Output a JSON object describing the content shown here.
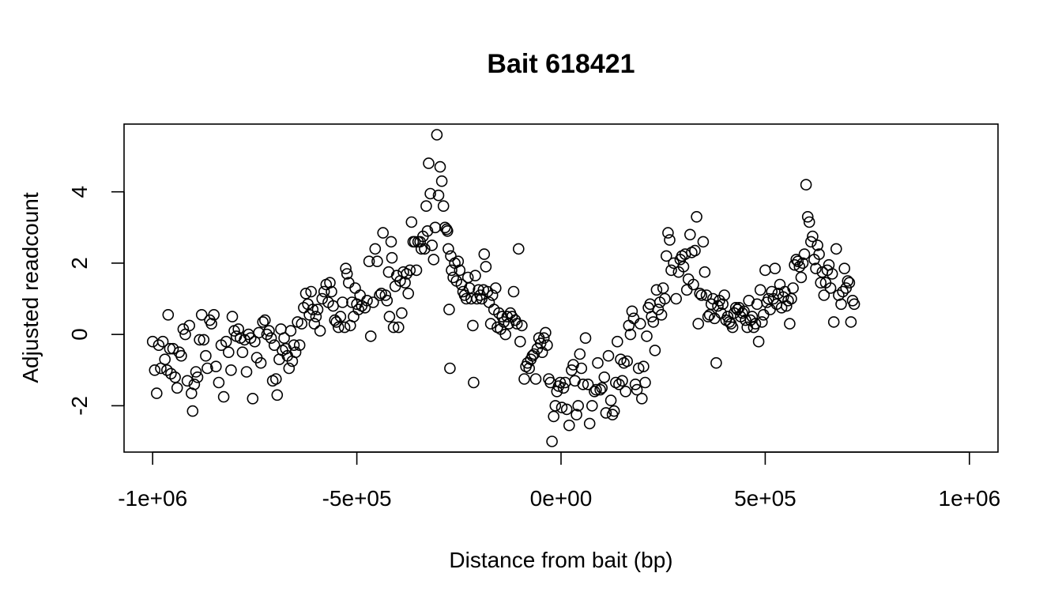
{
  "chart_data": {
    "type": "scatter",
    "title": "Bait 618421",
    "xlabel": "Distance from bait (bp)",
    "ylabel": "Adjusted readcount",
    "xlim": [
      -1070000,
      1070000
    ],
    "ylim": [
      -3.3,
      5.9
    ],
    "x_ticks": [
      -1000000,
      -500000,
      0,
      500000,
      1000000
    ],
    "x_tick_labels": [
      "-1e+06",
      "-5e+05",
      "0e+00",
      "5e+05",
      "1e+06"
    ],
    "y_ticks": [
      -2,
      0,
      2,
      4
    ],
    "y_tick_labels": [
      "-2",
      "0",
      "2",
      "4"
    ],
    "marker": "open-circle",
    "color": "#000000",
    "grid": false,
    "legend": "none",
    "points": [
      [
        -1000000,
        -0.2
      ],
      [
        -995000,
        -1.0
      ],
      [
        -990000,
        -1.65
      ],
      [
        -985000,
        -0.3
      ],
      [
        -980000,
        -0.95
      ],
      [
        -975000,
        -0.2
      ],
      [
        -970000,
        -0.7
      ],
      [
        -965000,
        -1.0
      ],
      [
        -962000,
        0.55
      ],
      [
        -958000,
        -0.4
      ],
      [
        -955000,
        -1.1
      ],
      [
        -950000,
        -0.4
      ],
      [
        -945000,
        -1.2
      ],
      [
        -940000,
        -1.5
      ],
      [
        -935000,
        -0.5
      ],
      [
        -930000,
        -0.6
      ],
      [
        -925000,
        0.15
      ],
      [
        -920000,
        0.0
      ],
      [
        -915000,
        -1.3
      ],
      [
        -910000,
        0.25
      ],
      [
        -905000,
        -1.65
      ],
      [
        -902000,
        -2.15
      ],
      [
        -898000,
        -1.4
      ],
      [
        -894000,
        -1.05
      ],
      [
        -890000,
        -1.2
      ],
      [
        -885000,
        -0.15
      ],
      [
        -880000,
        0.55
      ],
      [
        -875000,
        -0.15
      ],
      [
        -870000,
        -0.6
      ],
      [
        -866000,
        -0.95
      ],
      [
        -860000,
        0.4
      ],
      [
        -856000,
        0.3
      ],
      [
        -850000,
        0.55
      ],
      [
        -845000,
        -0.9
      ],
      [
        -838000,
        -1.35
      ],
      [
        -832000,
        -0.3
      ],
      [
        -826000,
        -1.75
      ],
      [
        -820000,
        -0.2
      ],
      [
        -814000,
        -0.5
      ],
      [
        -808000,
        -1.0
      ],
      [
        -805000,
        0.5
      ],
      [
        -800000,
        0.1
      ],
      [
        -795000,
        -0.05
      ],
      [
        -790000,
        0.15
      ],
      [
        -785000,
        -0.1
      ],
      [
        -780000,
        -0.5
      ],
      [
        -775000,
        -0.15
      ],
      [
        -770000,
        -1.05
      ],
      [
        -765000,
        0.0
      ],
      [
        -760000,
        -0.1
      ],
      [
        -755000,
        -1.8
      ],
      [
        -750000,
        -0.2
      ],
      [
        -745000,
        -0.65
      ],
      [
        -740000,
        0.05
      ],
      [
        -735000,
        -0.8
      ],
      [
        -730000,
        0.35
      ],
      [
        -725000,
        0.4
      ],
      [
        -720000,
        0.0
      ],
      [
        -715000,
        0.1
      ],
      [
        -710000,
        -0.1
      ],
      [
        -706000,
        -1.3
      ],
      [
        -702000,
        -0.3
      ],
      [
        -698000,
        -1.25
      ],
      [
        -695000,
        -1.7
      ],
      [
        -690000,
        -0.7
      ],
      [
        -686000,
        0.15
      ],
      [
        -682000,
        -0.45
      ],
      [
        -678000,
        -0.1
      ],
      [
        -674000,
        -0.4
      ],
      [
        -670000,
        -0.6
      ],
      [
        -666000,
        -0.95
      ],
      [
        -662000,
        0.1
      ],
      [
        -658000,
        -0.75
      ],
      [
        -654000,
        -0.3
      ],
      [
        -650000,
        -0.5
      ],
      [
        -645000,
        0.35
      ],
      [
        -640000,
        -0.3
      ],
      [
        -635000,
        0.3
      ],
      [
        -630000,
        0.75
      ],
      [
        -625000,
        1.15
      ],
      [
        -620000,
        0.85
      ],
      [
        -616000,
        0.55
      ],
      [
        -612000,
        1.2
      ],
      [
        -608000,
        0.7
      ],
      [
        -604000,
        0.3
      ],
      [
        -600000,
        0.5
      ],
      [
        -596000,
        0.7
      ],
      [
        -590000,
        0.1
      ],
      [
        -585000,
        1.0
      ],
      [
        -580000,
        1.2
      ],
      [
        -575000,
        1.4
      ],
      [
        -570000,
        0.9
      ],
      [
        -566000,
        1.45
      ],
      [
        -562000,
        1.2
      ],
      [
        -558000,
        0.8
      ],
      [
        -554000,
        0.4
      ],
      [
        -550000,
        0.35
      ],
      [
        -545000,
        0.2
      ],
      [
        -540000,
        0.5
      ],
      [
        -535000,
        0.9
      ],
      [
        -530000,
        0.2
      ],
      [
        -527000,
        1.85
      ],
      [
        -524000,
        1.7
      ],
      [
        -520000,
        1.45
      ],
      [
        -516000,
        0.25
      ],
      [
        -512000,
        0.9
      ],
      [
        -508000,
        0.5
      ],
      [
        -504000,
        1.3
      ],
      [
        -500000,
        0.85
      ],
      [
        -496000,
        0.7
      ],
      [
        -492000,
        1.1
      ],
      [
        -488000,
        0.8
      ],
      [
        -480000,
        0.75
      ],
      [
        -475000,
        0.95
      ],
      [
        -470000,
        2.05
      ],
      [
        -466000,
        -0.05
      ],
      [
        -460000,
        0.9
      ],
      [
        -455000,
        2.4
      ],
      [
        -450000,
        2.05
      ],
      [
        -444000,
        1.1
      ],
      [
        -440000,
        1.15
      ],
      [
        -436000,
        2.85
      ],
      [
        -430000,
        1.1
      ],
      [
        -426000,
        0.95
      ],
      [
        -422000,
        1.75
      ],
      [
        -420000,
        0.5
      ],
      [
        -416000,
        2.6
      ],
      [
        -414000,
        2.15
      ],
      [
        -410000,
        0.2
      ],
      [
        -406000,
        1.35
      ],
      [
        -402000,
        1.65
      ],
      [
        -398000,
        0.2
      ],
      [
        -394000,
        1.5
      ],
      [
        -390000,
        0.6
      ],
      [
        -386000,
        1.75
      ],
      [
        -382000,
        1.45
      ],
      [
        -378000,
        1.7
      ],
      [
        -374000,
        1.15
      ],
      [
        -370000,
        1.8
      ],
      [
        -366000,
        3.15
      ],
      [
        -362000,
        2.6
      ],
      [
        -358000,
        2.6
      ],
      [
        -354000,
        1.8
      ],
      [
        -350000,
        2.6
      ],
      [
        -345000,
        2.6
      ],
      [
        -342000,
        2.4
      ],
      [
        -338000,
        2.75
      ],
      [
        -334000,
        2.4
      ],
      [
        -330000,
        3.6
      ],
      [
        -327000,
        2.9
      ],
      [
        -324000,
        4.8
      ],
      [
        -320000,
        3.95
      ],
      [
        -316000,
        2.5
      ],
      [
        -312000,
        2.1
      ],
      [
        -308000,
        3.0
      ],
      [
        -304000,
        5.6
      ],
      [
        -300000,
        3.9
      ],
      [
        -296000,
        4.7
      ],
      [
        -292000,
        4.3
      ],
      [
        -288000,
        3.6
      ],
      [
        -284000,
        3.0
      ],
      [
        -280000,
        2.95
      ],
      [
        -278000,
        2.9
      ],
      [
        -276000,
        2.4
      ],
      [
        -274000,
        0.7
      ],
      [
        -272000,
        -0.95
      ],
      [
        -270000,
        2.2
      ],
      [
        -268000,
        1.8
      ],
      [
        -264000,
        1.6
      ],
      [
        -260000,
        2.0
      ],
      [
        -256000,
        1.5
      ],
      [
        -252000,
        2.05
      ],
      [
        -248000,
        1.8
      ],
      [
        -244000,
        1.4
      ],
      [
        -240000,
        1.2
      ],
      [
        -236000,
        1.1
      ],
      [
        -232000,
        1.0
      ],
      [
        -228000,
        1.6
      ],
      [
        -224000,
        1.3
      ],
      [
        -220000,
        1.0
      ],
      [
        -216000,
        0.25
      ],
      [
        -214000,
        -1.35
      ],
      [
        -210000,
        1.65
      ],
      [
        -206000,
        1.0
      ],
      [
        -202000,
        1.25
      ],
      [
        -198000,
        1.1
      ],
      [
        -194000,
        1.0
      ],
      [
        -190000,
        1.25
      ],
      [
        -188000,
        2.25
      ],
      [
        -184000,
        1.9
      ],
      [
        -180000,
        1.2
      ],
      [
        -176000,
        0.9
      ],
      [
        -172000,
        0.3
      ],
      [
        -168000,
        1.1
      ],
      [
        -164000,
        0.7
      ],
      [
        -160000,
        1.3
      ],
      [
        -156000,
        0.2
      ],
      [
        -152000,
        0.6
      ],
      [
        -148000,
        0.15
      ],
      [
        -144000,
        0.5
      ],
      [
        -140000,
        0.35
      ],
      [
        -136000,
        0.0
      ],
      [
        -132000,
        0.5
      ],
      [
        -128000,
        0.3
      ],
      [
        -124000,
        0.6
      ],
      [
        -120000,
        0.5
      ],
      [
        -116000,
        1.2
      ],
      [
        -112000,
        0.4
      ],
      [
        -108000,
        0.3
      ],
      [
        -104000,
        2.4
      ],
      [
        -100000,
        -0.2
      ],
      [
        -96000,
        0.25
      ],
      [
        -90000,
        -1.25
      ],
      [
        -86000,
        -0.9
      ],
      [
        -82000,
        -0.8
      ],
      [
        -78000,
        -0.95
      ],
      [
        -74000,
        -0.7
      ],
      [
        -70000,
        -0.6
      ],
      [
        -66000,
        -0.55
      ],
      [
        -62000,
        -1.25
      ],
      [
        -58000,
        -0.4
      ],
      [
        -54000,
        -0.1
      ],
      [
        -50000,
        -0.25
      ],
      [
        -46000,
        -0.5
      ],
      [
        -42000,
        -0.1
      ],
      [
        -38000,
        0.05
      ],
      [
        -34000,
        -0.3
      ],
      [
        -30000,
        -1.25
      ],
      [
        -26000,
        -1.35
      ],
      [
        -22000,
        -3.0
      ],
      [
        -18000,
        -2.3
      ],
      [
        -14000,
        -2.0
      ],
      [
        -10000,
        -1.6
      ],
      [
        -6000,
        -1.45
      ],
      [
        -2000,
        -1.35
      ],
      [
        2000,
        -2.05
      ],
      [
        6000,
        -1.5
      ],
      [
        10000,
        -1.35
      ],
      [
        14000,
        -2.1
      ],
      [
        20000,
        -2.55
      ],
      [
        26000,
        -1.0
      ],
      [
        30000,
        -0.85
      ],
      [
        34000,
        -1.3
      ],
      [
        38000,
        -2.25
      ],
      [
        42000,
        -2.0
      ],
      [
        46000,
        -0.55
      ],
      [
        50000,
        -0.95
      ],
      [
        54000,
        -1.4
      ],
      [
        60000,
        -0.1
      ],
      [
        66000,
        -1.4
      ],
      [
        70000,
        -2.5
      ],
      [
        76000,
        -2.0
      ],
      [
        82000,
        -1.6
      ],
      [
        86000,
        -1.55
      ],
      [
        90000,
        -0.8
      ],
      [
        96000,
        -1.55
      ],
      [
        100000,
        -1.5
      ],
      [
        106000,
        -1.2
      ],
      [
        110000,
        -2.2
      ],
      [
        116000,
        -0.6
      ],
      [
        122000,
        -1.85
      ],
      [
        126000,
        -2.25
      ],
      [
        130000,
        -2.15
      ],
      [
        134000,
        -1.35
      ],
      [
        138000,
        -0.2
      ],
      [
        142000,
        -1.4
      ],
      [
        146000,
        -0.7
      ],
      [
        150000,
        -1.3
      ],
      [
        154000,
        -0.8
      ],
      [
        158000,
        -1.6
      ],
      [
        162000,
        -0.75
      ],
      [
        166000,
        0.25
      ],
      [
        170000,
        0.0
      ],
      [
        174000,
        0.65
      ],
      [
        178000,
        0.45
      ],
      [
        182000,
        -1.4
      ],
      [
        186000,
        -1.55
      ],
      [
        190000,
        -0.95
      ],
      [
        194000,
        0.3
      ],
      [
        198000,
        -1.8
      ],
      [
        202000,
        -0.9
      ],
      [
        206000,
        -1.35
      ],
      [
        210000,
        -0.05
      ],
      [
        214000,
        0.75
      ],
      [
        218000,
        0.85
      ],
      [
        222000,
        0.5
      ],
      [
        226000,
        0.35
      ],
      [
        230000,
        -0.45
      ],
      [
        234000,
        1.25
      ],
      [
        238000,
        0.7
      ],
      [
        242000,
        0.9
      ],
      [
        246000,
        0.55
      ],
      [
        250000,
        1.3
      ],
      [
        254000,
        1.0
      ],
      [
        258000,
        2.2
      ],
      [
        262000,
        2.85
      ],
      [
        266000,
        2.65
      ],
      [
        270000,
        1.8
      ],
      [
        276000,
        2.0
      ],
      [
        282000,
        1.0
      ],
      [
        288000,
        1.75
      ],
      [
        292000,
        2.1
      ],
      [
        296000,
        2.2
      ],
      [
        300000,
        1.9
      ],
      [
        304000,
        2.25
      ],
      [
        308000,
        1.25
      ],
      [
        312000,
        1.55
      ],
      [
        316000,
        2.8
      ],
      [
        320000,
        2.3
      ],
      [
        324000,
        1.4
      ],
      [
        328000,
        2.35
      ],
      [
        332000,
        3.3
      ],
      [
        336000,
        0.3
      ],
      [
        340000,
        1.15
      ],
      [
        344000,
        1.1
      ],
      [
        348000,
        2.6
      ],
      [
        352000,
        1.75
      ],
      [
        356000,
        1.1
      ],
      [
        360000,
        0.5
      ],
      [
        364000,
        0.55
      ],
      [
        368000,
        0.85
      ],
      [
        372000,
        1.0
      ],
      [
        376000,
        0.45
      ],
      [
        380000,
        -0.8
      ],
      [
        384000,
        0.8
      ],
      [
        388000,
        0.95
      ],
      [
        392000,
        0.6
      ],
      [
        396000,
        0.85
      ],
      [
        400000,
        1.1
      ],
      [
        404000,
        0.4
      ],
      [
        408000,
        0.5
      ],
      [
        412000,
        0.35
      ],
      [
        416000,
        0.3
      ],
      [
        420000,
        0.2
      ],
      [
        424000,
        0.6
      ],
      [
        428000,
        0.75
      ],
      [
        432000,
        0.7
      ],
      [
        436000,
        0.75
      ],
      [
        440000,
        0.5
      ],
      [
        444000,
        0.6
      ],
      [
        448000,
        0.65
      ],
      [
        452000,
        0.4
      ],
      [
        456000,
        0.2
      ],
      [
        460000,
        0.95
      ],
      [
        464000,
        0.4
      ],
      [
        468000,
        0.5
      ],
      [
        472000,
        0.2
      ],
      [
        476000,
        0.3
      ],
      [
        480000,
        0.85
      ],
      [
        484000,
        -0.2
      ],
      [
        488000,
        1.25
      ],
      [
        492000,
        0.35
      ],
      [
        496000,
        0.55
      ],
      [
        500000,
        1.8
      ],
      [
        504000,
        0.9
      ],
      [
        508000,
        1.0
      ],
      [
        512000,
        0.7
      ],
      [
        516000,
        1.2
      ],
      [
        520000,
        1.0
      ],
      [
        524000,
        1.85
      ],
      [
        528000,
        0.85
      ],
      [
        532000,
        1.15
      ],
      [
        536000,
        1.4
      ],
      [
        540000,
        0.75
      ],
      [
        544000,
        1.05
      ],
      [
        548000,
        1.2
      ],
      [
        552000,
        0.8
      ],
      [
        556000,
        0.95
      ],
      [
        560000,
        0.3
      ],
      [
        564000,
        1.0
      ],
      [
        568000,
        1.3
      ],
      [
        572000,
        1.95
      ],
      [
        576000,
        2.1
      ],
      [
        580000,
        2.05
      ],
      [
        584000,
        1.9
      ],
      [
        588000,
        1.6
      ],
      [
        592000,
        2.0
      ],
      [
        596000,
        2.25
      ],
      [
        600000,
        4.2
      ],
      [
        604000,
        3.3
      ],
      [
        608000,
        3.15
      ],
      [
        612000,
        2.6
      ],
      [
        616000,
        2.75
      ],
      [
        620000,
        2.1
      ],
      [
        624000,
        1.85
      ],
      [
        628000,
        2.5
      ],
      [
        632000,
        2.25
      ],
      [
        636000,
        1.45
      ],
      [
        640000,
        1.75
      ],
      [
        644000,
        1.1
      ],
      [
        648000,
        1.45
      ],
      [
        652000,
        1.8
      ],
      [
        656000,
        1.95
      ],
      [
        660000,
        1.3
      ],
      [
        664000,
        1.7
      ],
      [
        668000,
        0.35
      ],
      [
        674000,
        2.4
      ],
      [
        680000,
        1.1
      ],
      [
        686000,
        0.85
      ],
      [
        690000,
        1.2
      ],
      [
        694000,
        1.85
      ],
      [
        698000,
        1.3
      ],
      [
        702000,
        1.5
      ],
      [
        706000,
        1.45
      ],
      [
        710000,
        0.35
      ],
      [
        714000,
        0.95
      ],
      [
        718000,
        0.85
      ]
    ]
  }
}
